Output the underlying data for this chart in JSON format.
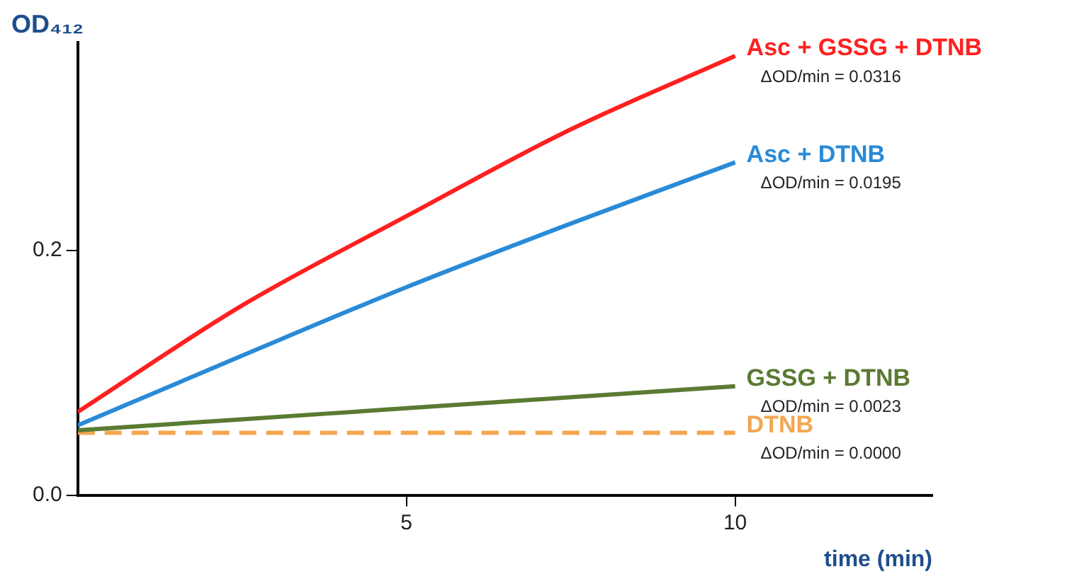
{
  "chart_data": {
    "type": "line",
    "xlabel": "time (min)",
    "ylabel": "OD₄₁₂",
    "x": [
      0,
      2.5,
      5,
      7.5,
      10
    ],
    "series": [
      {
        "name": "Asc + GSSG + DTNB",
        "color": "#ff2020",
        "values": [
          0.068,
          0.155,
          0.228,
          0.299,
          0.359
        ]
      },
      {
        "name": "Asc + DTNB",
        "color": "#2a8ad6",
        "values": [
          0.057,
          0.114,
          0.17,
          0.222,
          0.272
        ]
      },
      {
        "name": "GSSG + DTNB",
        "color": "#5a7a32",
        "values": [
          0.053,
          0.062,
          0.071,
          0.08,
          0.089
        ]
      },
      {
        "name": "DTNB",
        "color": "#f4a650",
        "line_style": "dashed",
        "values": [
          0.051,
          0.051,
          0.051,
          0.051,
          0.051
        ]
      }
    ],
    "annotations": [
      "ΔOD/min = 0.0316",
      "ΔOD/min = 0.0195",
      "ΔOD/min = 0.0023",
      "ΔOD/min = 0.0000"
    ],
    "xlim": [
      0,
      13
    ],
    "xticks": [
      5,
      10
    ],
    "ylim": [
      0,
      0.37
    ],
    "yticks": [
      {
        "value": 0,
        "label": "0.0"
      },
      {
        "value": 0.2,
        "label": "0.2"
      }
    ],
    "grid": false,
    "legend": false,
    "marker": "none",
    "line_style": "solid"
  }
}
